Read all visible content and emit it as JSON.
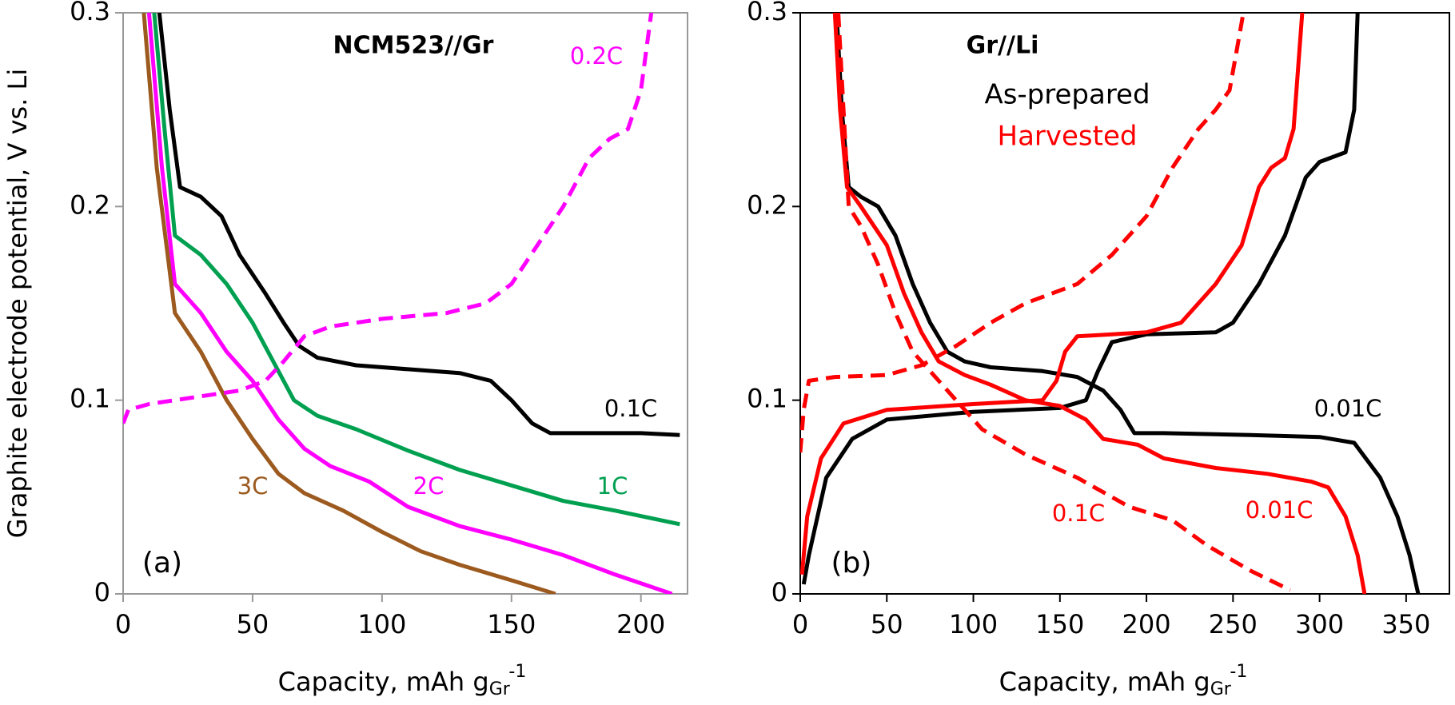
{
  "chart_data": [
    {
      "type": "line",
      "title": "NCM523//Gr",
      "panel_label": "(a)",
      "y_label": "Graphite electrode potential, V vs. Li",
      "x_label": {
        "text": "Capacity, mAh g",
        "sub": "Gr",
        "sup": "-1"
      },
      "xlim": [
        0,
        218
      ],
      "xticks": [
        0,
        50,
        100,
        150,
        200
      ],
      "ylim": [
        0,
        0.3
      ],
      "yticks": [
        0,
        0.1,
        0.2,
        0.3
      ],
      "series": [
        {
          "name": "0.1C",
          "color": "#000000",
          "dash": false,
          "x": [
            14,
            18,
            22,
            30,
            38,
            45,
            55,
            62,
            68,
            75,
            90,
            110,
            130,
            142,
            150,
            158,
            165,
            180,
            200,
            215
          ],
          "values": [
            0.3,
            0.25,
            0.21,
            0.205,
            0.195,
            0.175,
            0.155,
            0.14,
            0.128,
            0.122,
            0.118,
            0.116,
            0.114,
            0.11,
            0.1,
            0.088,
            0.083,
            0.083,
            0.083,
            0.082
          ]
        },
        {
          "name": "1C",
          "color": "#00a050",
          "dash": false,
          "x": [
            12,
            16,
            20,
            30,
            40,
            50,
            58,
            66,
            75,
            90,
            110,
            130,
            150,
            170,
            190,
            215
          ],
          "values": [
            0.3,
            0.24,
            0.185,
            0.175,
            0.16,
            0.14,
            0.12,
            0.1,
            0.092,
            0.085,
            0.074,
            0.064,
            0.056,
            0.048,
            0.043,
            0.036
          ]
        },
        {
          "name": "2C",
          "color": "#ff00ff",
          "dash": false,
          "x": [
            10,
            15,
            20,
            30,
            40,
            50,
            60,
            70,
            80,
            95,
            110,
            130,
            150,
            170,
            190,
            212
          ],
          "values": [
            0.3,
            0.22,
            0.16,
            0.145,
            0.125,
            0.11,
            0.09,
            0.075,
            0.066,
            0.058,
            0.045,
            0.035,
            0.028,
            0.02,
            0.01,
            0
          ]
        },
        {
          "name": "3C",
          "color": "#9c5a1f",
          "dash": false,
          "x": [
            8,
            13,
            20,
            30,
            40,
            50,
            60,
            70,
            85,
            100,
            115,
            130,
            150,
            167
          ],
          "values": [
            0.3,
            0.22,
            0.145,
            0.125,
            0.1,
            0.08,
            0.062,
            0.052,
            0.043,
            0.032,
            0.022,
            0.015,
            0.007,
            0
          ]
        },
        {
          "name": "0.2C",
          "color": "#ff00ff",
          "dash": true,
          "x": [
            0,
            2,
            10,
            30,
            45,
            55,
            62,
            70,
            80,
            100,
            125,
            140,
            150,
            160,
            170,
            180,
            188,
            195,
            200,
            203,
            204
          ],
          "values": [
            0.088,
            0.095,
            0.098,
            0.102,
            0.105,
            0.11,
            0.12,
            0.133,
            0.138,
            0.142,
            0.145,
            0.15,
            0.16,
            0.18,
            0.2,
            0.225,
            0.235,
            0.24,
            0.26,
            0.29,
            0.3
          ]
        }
      ]
    },
    {
      "type": "line",
      "title": "Gr//Li",
      "panel_label": "(b)",
      "x_label": {
        "text": "Capacity, mAh g",
        "sub": "Gr",
        "sup": "-1"
      },
      "xlim": [
        0,
        375
      ],
      "xticks": [
        0,
        50,
        100,
        150,
        200,
        250,
        300,
        350
      ],
      "ylim": [
        0,
        0.3
      ],
      "yticks": [
        0,
        0.1,
        0.2,
        0.3
      ],
      "annotations": [
        {
          "text": "As-prepared",
          "color": "#000000"
        },
        {
          "text": "Harvested",
          "color": "#ff0000"
        },
        {
          "text": "0.01C",
          "color": "#000000"
        },
        {
          "text": "0.1C",
          "color": "#ff0000"
        },
        {
          "text": "0.01C",
          "color": "#ff0000"
        }
      ],
      "series": [
        {
          "color": "#000000",
          "dash": false,
          "x": [
            21,
            24,
            28,
            35,
            45,
            55,
            65,
            75,
            85,
            95,
            110,
            140,
            160,
            175,
            185,
            193,
            210,
            260,
            300,
            320,
            335,
            345,
            352,
            357
          ],
          "values": [
            0.3,
            0.25,
            0.21,
            0.205,
            0.2,
            0.185,
            0.16,
            0.14,
            0.125,
            0.12,
            0.117,
            0.115,
            0.112,
            0.105,
            0.095,
            0.083,
            0.083,
            0.082,
            0.081,
            0.078,
            0.06,
            0.04,
            0.02,
            0
          ]
        },
        {
          "color": "#000000",
          "dash": false,
          "x": [
            2,
            5,
            15,
            30,
            50,
            100,
            150,
            165,
            172,
            180,
            200,
            240,
            250,
            265,
            280,
            292,
            300,
            315,
            320,
            322
          ],
          "values": [
            0.005,
            0.02,
            0.06,
            0.08,
            0.09,
            0.094,
            0.096,
            0.1,
            0.115,
            0.13,
            0.134,
            0.135,
            0.14,
            0.16,
            0.185,
            0.215,
            0.223,
            0.228,
            0.25,
            0.3
          ]
        },
        {
          "color": "#ff0000",
          "dash": false,
          "x": [
            20,
            23,
            27,
            35,
            50,
            60,
            70,
            80,
            95,
            110,
            130,
            150,
            165,
            175,
            195,
            210,
            240,
            270,
            295,
            305,
            315,
            322,
            326
          ],
          "values": [
            0.3,
            0.25,
            0.21,
            0.2,
            0.18,
            0.155,
            0.135,
            0.12,
            0.113,
            0.108,
            0.1,
            0.097,
            0.09,
            0.08,
            0.077,
            0.07,
            0.065,
            0.062,
            0.058,
            0.055,
            0.04,
            0.02,
            0
          ]
        },
        {
          "color": "#ff0000",
          "dash": false,
          "x": [
            1,
            4,
            12,
            25,
            50,
            100,
            140,
            148,
            153,
            160,
            200,
            220,
            240,
            255,
            265,
            272,
            280,
            285,
            290
          ],
          "values": [
            0.01,
            0.04,
            0.07,
            0.088,
            0.095,
            0.098,
            0.1,
            0.11,
            0.125,
            0.133,
            0.135,
            0.14,
            0.16,
            0.18,
            0.21,
            0.22,
            0.225,
            0.24,
            0.3
          ]
        },
        {
          "color": "#ff0000",
          "dash": true,
          "x": [
            22,
            25,
            28,
            35,
            45,
            55,
            65,
            75,
            90,
            105,
            130,
            160,
            190,
            215,
            235,
            260,
            283
          ],
          "values": [
            0.3,
            0.25,
            0.2,
            0.19,
            0.17,
            0.145,
            0.125,
            0.115,
            0.1,
            0.085,
            0.072,
            0.06,
            0.045,
            0.038,
            0.025,
            0.012,
            0.002
          ]
        },
        {
          "color": "#ff0000",
          "dash": true,
          "x": [
            0,
            2,
            5,
            20,
            50,
            70,
            90,
            110,
            130,
            160,
            180,
            200,
            215,
            230,
            240,
            248,
            252,
            256
          ],
          "values": [
            0.073,
            0.095,
            0.11,
            0.112,
            0.113,
            0.118,
            0.128,
            0.14,
            0.15,
            0.16,
            0.175,
            0.195,
            0.22,
            0.24,
            0.25,
            0.26,
            0.28,
            0.3
          ]
        }
      ]
    }
  ]
}
